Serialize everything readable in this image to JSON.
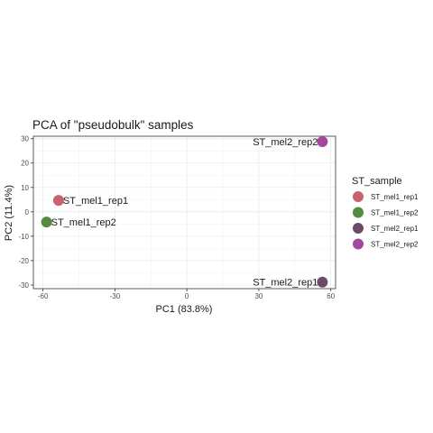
{
  "chart_data": {
    "type": "scatter",
    "title": "PCA of \"pseudobulk\" samples",
    "xlabel": "PC1 (83.8%)",
    "ylabel": "PC2 (11.4%)",
    "xlim": [
      -64,
      62
    ],
    "ylim": [
      -31.5,
      31
    ],
    "xticks": [
      -60,
      -30,
      0,
      30,
      60
    ],
    "yticks": [
      -30,
      -20,
      -10,
      0,
      10,
      20,
      30
    ],
    "grid": true,
    "legend_position": "right",
    "legend_title": "ST_sample",
    "series": [
      {
        "name": "ST_mel1_rep1",
        "color": "#c8626f",
        "points": [
          {
            "x": -53.5,
            "y": 4.7,
            "label": "ST_mel1_rep1"
          }
        ]
      },
      {
        "name": "ST_mel1_rep2",
        "color": "#538c3e",
        "points": [
          {
            "x": -58.5,
            "y": -4.2,
            "label": "ST_mel1_rep2"
          }
        ]
      },
      {
        "name": "ST_mel2_rep1",
        "color": "#6d4a68",
        "points": [
          {
            "x": 56.5,
            "y": -28.8,
            "label": "ST_mel2_rep1"
          }
        ]
      },
      {
        "name": "ST_mel2_rep2",
        "color": "#a4489c",
        "points": [
          {
            "x": 56.5,
            "y": 28.8,
            "label": "ST_mel2_rep2"
          }
        ]
      }
    ]
  }
}
